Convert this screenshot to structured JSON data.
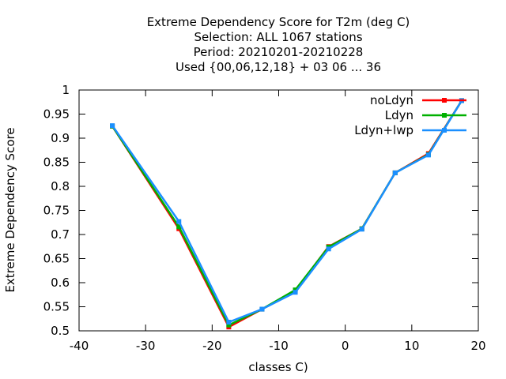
{
  "chart_data": {
    "type": "line",
    "title_lines": [
      "Extreme Dependency Score  for T2m (deg C)",
      "Selection: ALL   1067 stations",
      "Period: 20210201-20210228",
      "Used {00,06,12,18} + 03 06 ... 36"
    ],
    "xlabel": "classes C)",
    "ylabel": "Extreme Dependency Score",
    "xlim": [
      -40,
      20
    ],
    "ylim": [
      0.5,
      1.0
    ],
    "x_ticks": [
      -40,
      -30,
      -20,
      -10,
      0,
      10,
      20
    ],
    "y_ticks": [
      0.5,
      0.55,
      0.6,
      0.65,
      0.7,
      0.75,
      0.8,
      0.85,
      0.9,
      0.95,
      1.0
    ],
    "y_tick_labels": [
      "0.5",
      "0.55",
      "0.6",
      "0.65",
      "0.7",
      "0.75",
      "0.8",
      "0.85",
      "0.9",
      "0.95",
      "1"
    ],
    "legend_position": "top-right",
    "grid": false,
    "series": [
      {
        "name": "noLdyn",
        "color": "#ff0000",
        "x": [
          -35,
          -25,
          -17.5,
          -12.5,
          -7.5,
          -2.5,
          2.5,
          7.5,
          12.5,
          17.5
        ],
        "y": [
          0.925,
          0.712,
          0.508,
          0.545,
          0.583,
          0.675,
          0.712,
          0.828,
          0.868,
          0.978
        ]
      },
      {
        "name": "Ldyn",
        "color": "#00b000",
        "x": [
          -35,
          -25,
          -17.5,
          -12.5,
          -7.5,
          -2.5,
          2.5,
          7.5,
          12.5,
          17.5
        ],
        "y": [
          0.925,
          0.716,
          0.512,
          0.545,
          0.585,
          0.674,
          0.712,
          0.828,
          0.866,
          0.978
        ]
      },
      {
        "name": "Ldyn+lwp",
        "color": "#1a8fff",
        "x": [
          -35,
          -25,
          -17.5,
          -12.5,
          -7.5,
          -2.5,
          2.5,
          7.5,
          12.5,
          17.5
        ],
        "y": [
          0.926,
          0.727,
          0.518,
          0.545,
          0.58,
          0.67,
          0.711,
          0.828,
          0.865,
          0.978
        ]
      }
    ]
  }
}
